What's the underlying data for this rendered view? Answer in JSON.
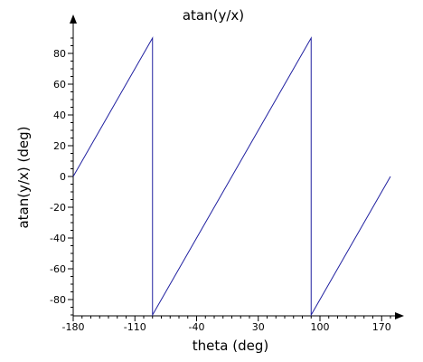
{
  "chart_data": {
    "type": "line",
    "title": "atan(y/x)",
    "xlabel": "theta  (deg)",
    "ylabel": "atan(y/x)  (deg)",
    "xlim": [
      -180,
      180
    ],
    "ylim": [
      -90,
      90
    ],
    "x_ticks": [
      -180,
      -110,
      -40,
      30,
      100,
      170
    ],
    "y_ticks": [
      80,
      60,
      40,
      20,
      0,
      -20,
      -40,
      -60,
      -80
    ],
    "grid": false,
    "series": [
      {
        "color": "#2020a0",
        "points": [
          {
            "x": -180,
            "y": 0
          },
          {
            "x": -90,
            "y": 90
          },
          {
            "x": -90,
            "y": -90
          },
          {
            "x": 90,
            "y": 90
          },
          {
            "x": 90,
            "y": -90
          },
          {
            "x": 180,
            "y": 0
          }
        ]
      }
    ]
  }
}
